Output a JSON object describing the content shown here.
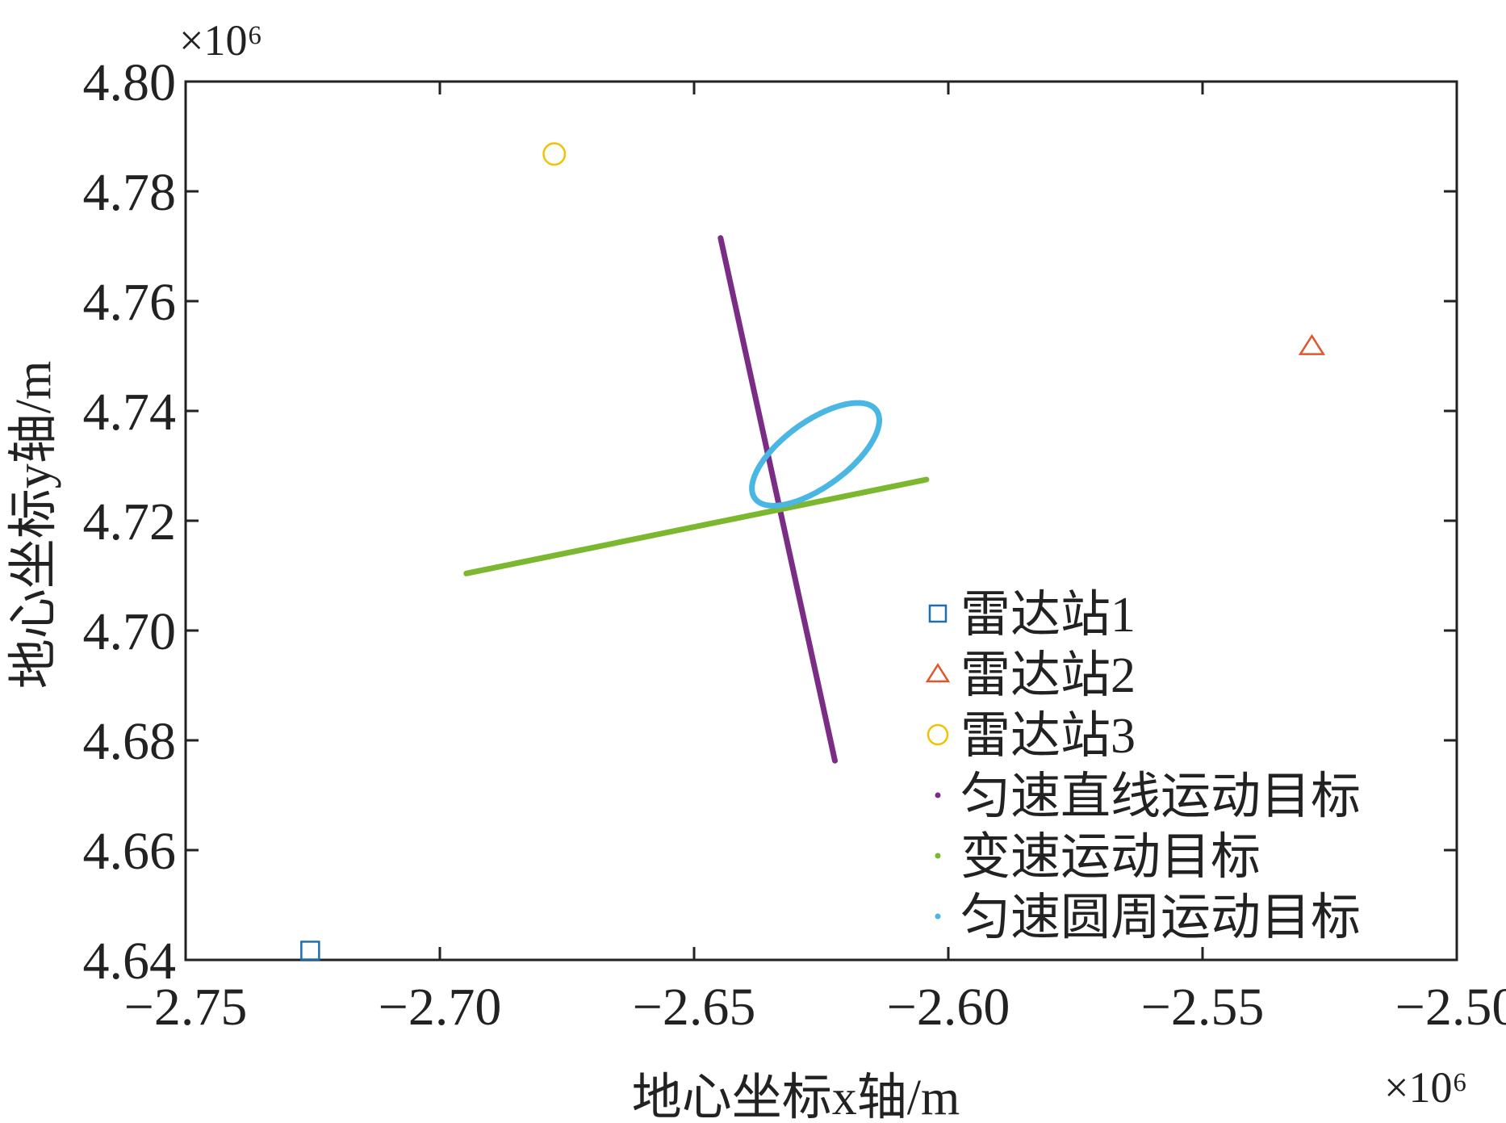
{
  "chart_data": {
    "type": "scatter",
    "title": "",
    "xlabel": "地心坐标x轴/m",
    "ylabel": "地心坐标y轴/m",
    "x_multiplier": "×10⁶",
    "y_multiplier": "×10⁶",
    "xlim": [
      -2.75,
      -2.5
    ],
    "ylim": [
      4.64,
      4.8
    ],
    "x_ticks": [
      -2.75,
      -2.7,
      -2.65,
      -2.6,
      -2.55,
      -2.5
    ],
    "x_tick_labels": [
      "−2.75",
      "−2.70",
      "−2.65",
      "−2.60",
      "−2.55",
      "−2.50"
    ],
    "y_ticks": [
      4.64,
      4.66,
      4.68,
      4.7,
      4.72,
      4.74,
      4.76,
      4.78,
      4.8
    ],
    "y_tick_labels": [
      "4.64",
      "4.66",
      "4.68",
      "4.70",
      "4.72",
      "4.74",
      "4.76",
      "4.78",
      "4.80"
    ],
    "grid": false,
    "legend_position": "bottom-right",
    "series": [
      {
        "name": "雷达站1",
        "kind": "marker",
        "marker": "square",
        "color": "#1f6fb0",
        "points": [
          [
            -2.7255,
            4.6417
          ]
        ]
      },
      {
        "name": "雷达站2",
        "kind": "marker",
        "marker": "triangle",
        "color": "#e0562a",
        "points": [
          [
            -2.5285,
            4.7518
          ]
        ]
      },
      {
        "name": "雷达站3",
        "kind": "marker",
        "marker": "circle",
        "color": "#f2c200",
        "points": [
          [
            -2.6775,
            4.7868
          ]
        ]
      },
      {
        "name": "匀速直线运动目标",
        "kind": "line",
        "color": "#7b2d86",
        "points": [
          [
            -2.6448,
            4.7715
          ],
          [
            -2.6223,
            4.6763
          ]
        ]
      },
      {
        "name": "变速运动目标",
        "kind": "line",
        "color": "#7cb82f",
        "points": [
          [
            -2.6948,
            4.7104
          ],
          [
            -2.6043,
            4.7275
          ]
        ]
      },
      {
        "name": "匀速圆周运动目标",
        "kind": "ellipse",
        "color": "#49b6e3",
        "center": [
          -2.6261,
          4.7321
        ],
        "semi_major": 0.0144,
        "semi_minor": 0.0061,
        "angle_deg": 33
      }
    ]
  }
}
